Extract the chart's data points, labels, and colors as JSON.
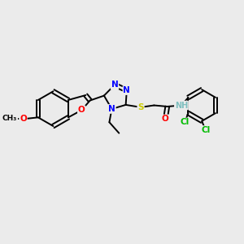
{
  "background_color": "#ebebeb",
  "atom_colors": {
    "C": "#000000",
    "N": "#0000ff",
    "O": "#ff0000",
    "S": "#cccc00",
    "Cl": "#00bb00",
    "H": "#7fbfbf"
  },
  "bond_color": "#000000",
  "line_width": 1.4,
  "font_size": 7.5
}
